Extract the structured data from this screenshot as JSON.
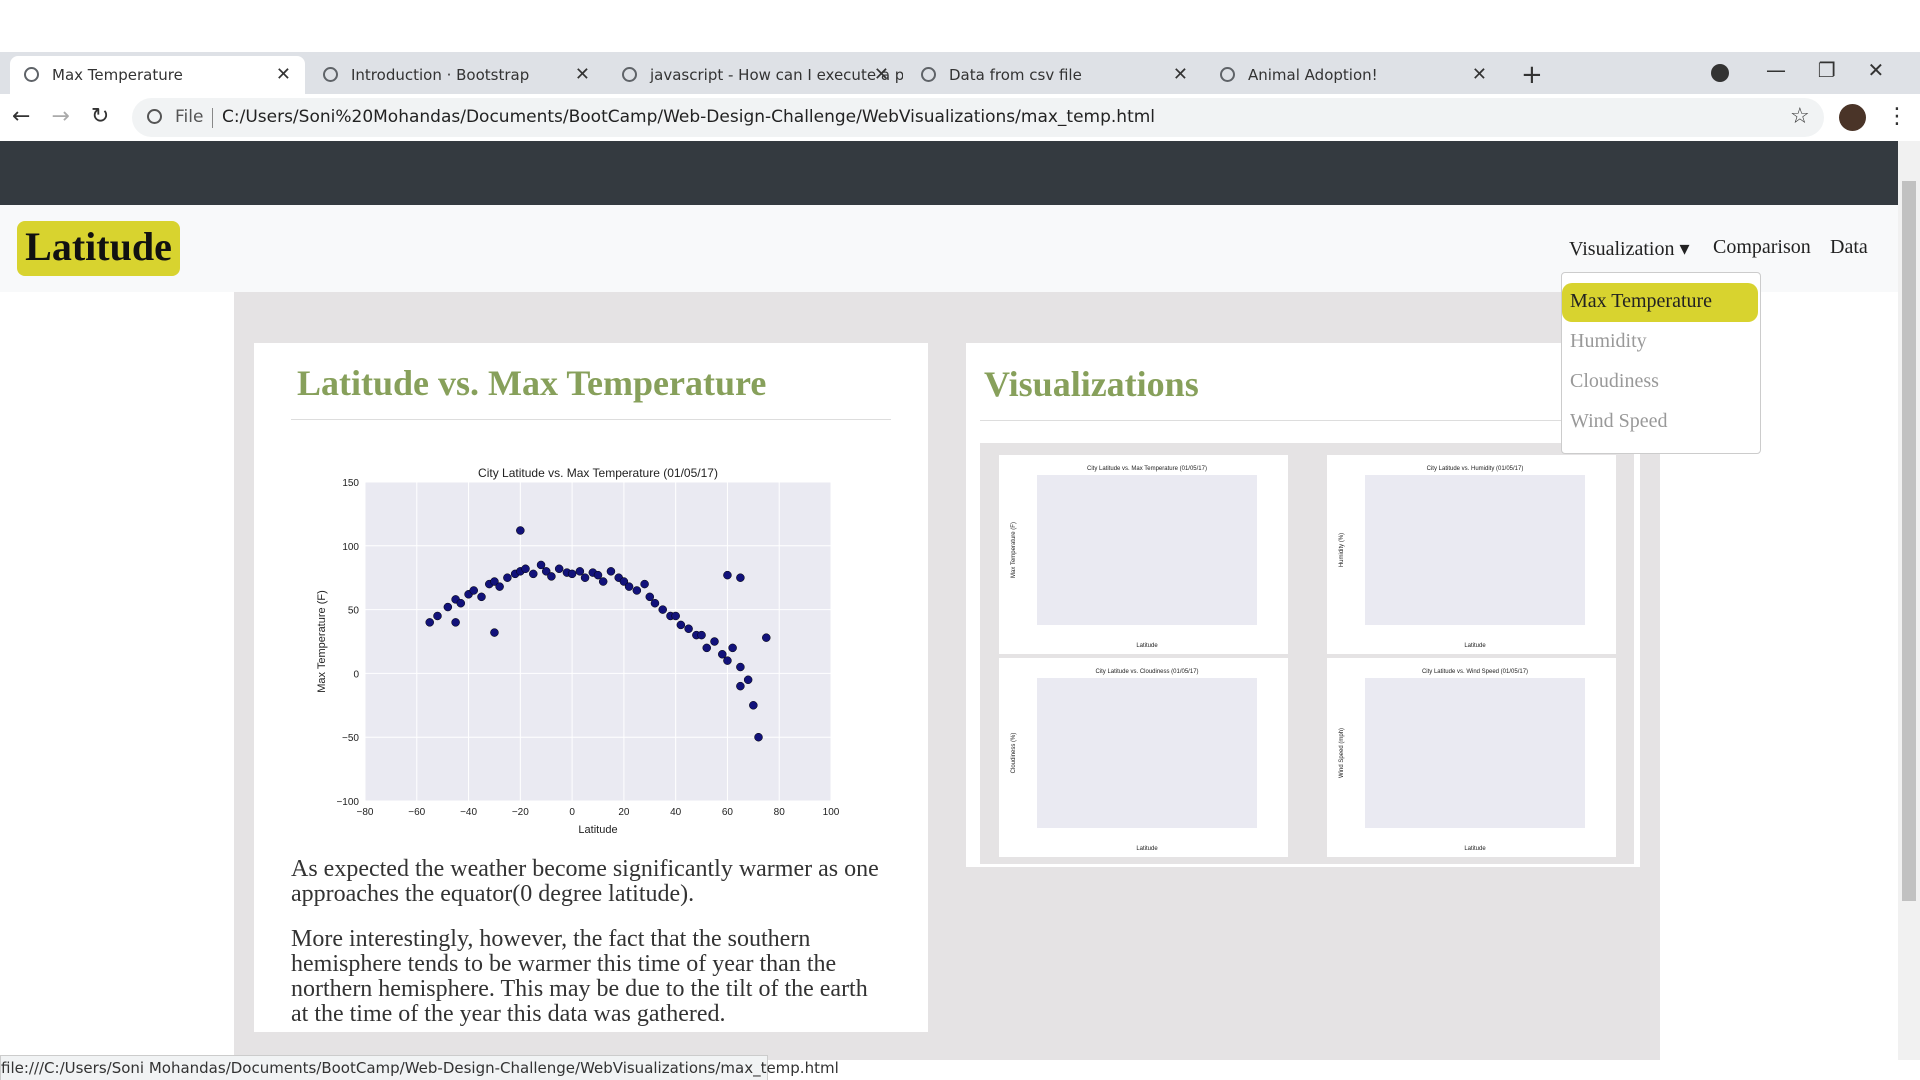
{
  "browser": {
    "tabs": [
      "Max Temperature",
      "Introduction · Bootstrap",
      "javascript - How can I execute a p",
      "Data from csv file",
      "Animal Adoption!"
    ],
    "address": {
      "scheme": "File",
      "url": "C:/Users/Soni%20Mohandas/Documents/BootCamp/Web-Design-Challenge/WebVisualizations/max_temp.html"
    },
    "status": "file:///C:/Users/Soni Mohandas/Documents/BootCamp/Web-Design-Challenge/WebVisualizations/max_temp.html"
  },
  "navbar": {
    "brand": "Latitude",
    "links": [
      "Visualization",
      "Comparison",
      "Data"
    ],
    "dropdown": [
      "Max Temperature",
      "Humidity",
      "Cloudiness",
      "Wind Speed"
    ]
  },
  "left_card": {
    "title": "Latitude vs. Max Temperature",
    "paragraphs": [
      "As expected the weather become significantly warmer as one approaches the equator(0 degree latitude).",
      "More interestingly, however, the fact that the southern hemisphere tends to be warmer this time of year than the northern hemisphere. This may be due to the tilt of the earth at the time of the year this data was gathered."
    ]
  },
  "chart_data": {
    "type": "scatter",
    "title": "City Latitude vs. Max Temperature (01/05/17)",
    "x_label": "Latitude",
    "y_label": "Max Temperature (F)",
    "color": "#12127a",
    "grid": true,
    "xlim": [
      -80,
      100
    ],
    "ylim": [
      -100,
      150
    ],
    "xticks": [
      {
        "value": -80,
        "label": "−80"
      },
      {
        "value": -60,
        "label": "−60"
      },
      {
        "value": -40,
        "label": "−40"
      },
      {
        "value": -20,
        "label": "−20"
      },
      0,
      20,
      40,
      60,
      80,
      100
    ],
    "yticks": [
      {
        "value": -100,
        "label": "−100"
      },
      {
        "value": -50,
        "label": "−50"
      },
      0,
      50,
      100,
      150
    ],
    "x": [
      -55,
      -52,
      -48,
      -45,
      -43,
      -40,
      -38,
      -35,
      -32,
      -30,
      -28,
      -25,
      -22,
      -20,
      -20,
      -18,
      -15,
      -12,
      -10,
      -8,
      -5,
      -2,
      0,
      3,
      5,
      8,
      10,
      12,
      15,
      18,
      20,
      22,
      25,
      28,
      30,
      32,
      35,
      38,
      40,
      42,
      45,
      48,
      50,
      52,
      55,
      58,
      60,
      62,
      65,
      65,
      68,
      70,
      72,
      75,
      -30,
      60,
      65,
      -45
    ],
    "y": [
      40,
      45,
      52,
      58,
      55,
      62,
      65,
      60,
      70,
      72,
      68,
      75,
      78,
      80,
      112,
      82,
      78,
      85,
      80,
      76,
      82,
      79,
      78,
      80,
      75,
      79,
      77,
      72,
      80,
      75,
      72,
      68,
      65,
      70,
      60,
      55,
      50,
      45,
      45,
      38,
      35,
      30,
      30,
      20,
      25,
      15,
      10,
      20,
      5,
      -10,
      -5,
      -25,
      -50,
      28,
      32,
      77,
      75,
      40
    ]
  },
  "right_card": {
    "title": "Visualizations",
    "thumbnails": [
      {
        "title": "City Latitude vs. Max Temperature (01/05/17)",
        "x_label": "Latitude",
        "y_label": "Max Temperature (F)"
      },
      {
        "title": "City Latitude vs. Humidity (01/05/17)",
        "x_label": "Latitude",
        "y_label": "Humidity (%)"
      },
      {
        "title": "City Latitude vs. Cloudiness (01/05/17)",
        "x_label": "Latitude",
        "y_label": "Cloudiness (%)"
      },
      {
        "title": "City Latitude vs. Wind Speed (01/05/17)",
        "x_label": "Latitude",
        "y_label": "Wind Speed (mph)"
      }
    ]
  }
}
